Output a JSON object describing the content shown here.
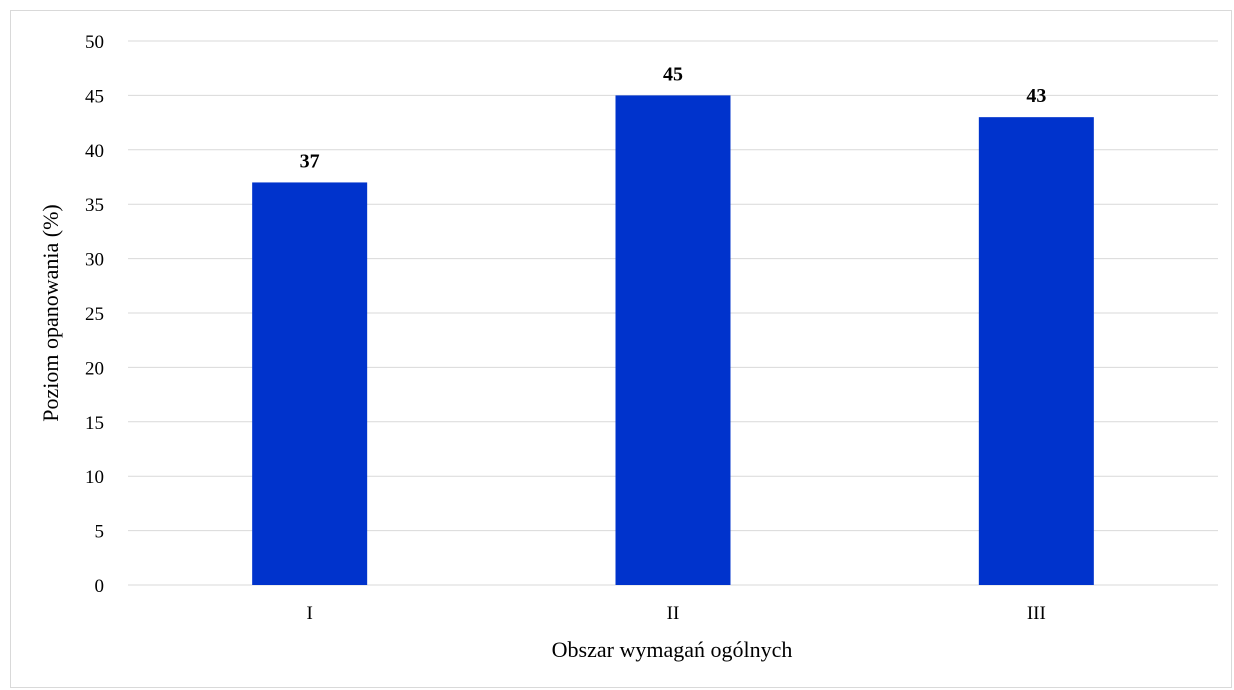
{
  "chart_data": {
    "type": "bar",
    "title": "",
    "categories": [
      "I",
      "II",
      "III"
    ],
    "values": [
      37,
      45,
      43
    ],
    "data_labels": [
      "37",
      "45",
      "43"
    ],
    "xlabel": "Obszar wymagań ogólnych",
    "ylabel": "Poziom opanowania (%)",
    "ylim": [
      0,
      50
    ],
    "yticks": [
      0,
      5,
      10,
      15,
      20,
      25,
      30,
      35,
      40,
      45,
      50
    ],
    "grid": true,
    "legend": "none",
    "bar_color": "#0033cc",
    "grid_color": "#d9d9d9"
  }
}
